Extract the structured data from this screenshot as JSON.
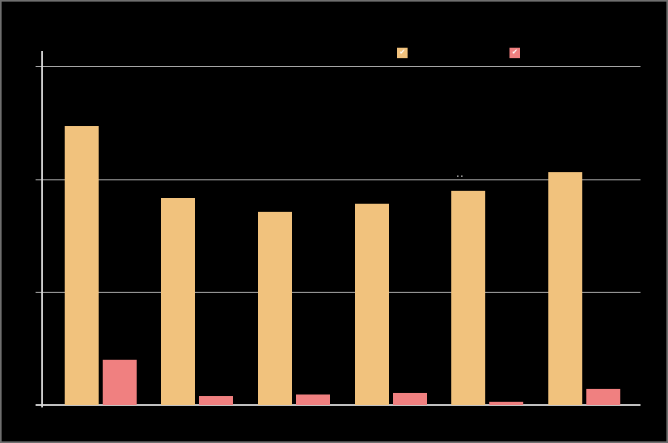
{
  "window": {
    "background": "#000000",
    "border_color": "#6e6e6e"
  },
  "chart_data": {
    "type": "bar",
    "title": "",
    "xlabel": "",
    "ylabel": "",
    "categories": [
      "",
      "",
      "",
      "",
      "",
      ""
    ],
    "series": [
      {
        "name": "",
        "color": "#F1C27D",
        "values": [
          24.7,
          18.3,
          17.1,
          17.8,
          19.0,
          20.6
        ]
      },
      {
        "name": "",
        "color": "#F08080",
        "values": [
          4.0,
          0.8,
          0.9,
          1.1,
          0.3,
          1.4
        ]
      }
    ],
    "ylim": [
      0,
      30
    ],
    "yticks": [
      0,
      10,
      20,
      30
    ],
    "tick_labels_visible": false,
    "category_labels_visible": false,
    "grid": true,
    "gridline_color": "#d9d9d9",
    "axis_color": "#d9d9d9",
    "plot_background": "#000000",
    "legend_position": "top-center"
  },
  "legend": {
    "items": [
      {
        "label": "",
        "color": "#F1C27D",
        "symbol": "✔"
      },
      {
        "label": "",
        "color": "#F08080",
        "symbol": "✔"
      }
    ]
  }
}
